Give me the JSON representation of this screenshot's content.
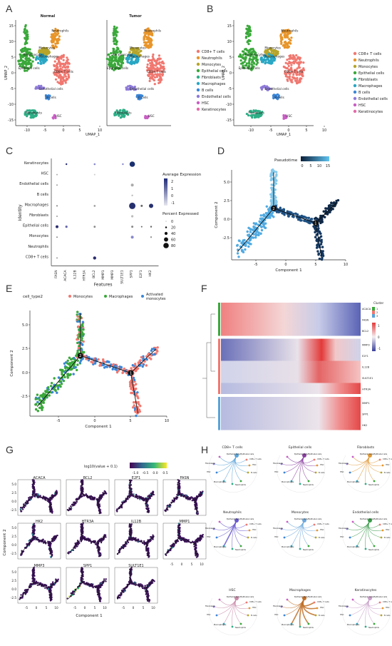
{
  "panels": {
    "A": "A",
    "B": "B",
    "C": "C",
    "D": "D",
    "E": "E",
    "F": "F",
    "G": "G",
    "H": "H"
  },
  "panelA": {
    "title_left": "Normal",
    "title_right": "Tumor",
    "xlabel": "UMAP_1",
    "ylabel": "UMAP_2",
    "yticks": [
      "15",
      "10",
      "5",
      "0",
      "-5",
      "-10",
      "-15"
    ],
    "xticks_left": [
      "-10",
      "-5",
      "0",
      "5",
      "10"
    ],
    "xticks_right": [
      "-5",
      "0",
      "5",
      "10"
    ],
    "cluster_labels": [
      "Neutrophils",
      "Monocytes",
      "Macrophages",
      "Keratinocytes",
      "Epithelial cells",
      "CD8+ T cells",
      "Endothelial cells",
      "B cells",
      "Fibroblasts",
      "HSC"
    ]
  },
  "legend_types": [
    "CD8+ T cells",
    "Neutrophils",
    "Monocytes",
    "Epithelial cells",
    "Fibroblasts",
    "Macrophages",
    "B cells",
    "Endothelial cells",
    "HSC",
    "Keratinocytes"
  ],
  "legend_colors": [
    "#f07870",
    "#e8952a",
    "#b6a52a",
    "#3aa83a",
    "#2eae86",
    "#29a7c4",
    "#3a86d8",
    "#8e7ad8",
    "#c85ec4",
    "#e36aa8"
  ],
  "panelB": {
    "xlabel": "UMAP_1",
    "ylabel": "UMAP_2",
    "yticks": [
      "15",
      "10",
      "5",
      "0",
      "-5",
      "-10",
      "-15"
    ],
    "xticks": [
      "-10",
      "-5",
      "0",
      "5",
      "10"
    ],
    "cluster_labels": [
      "Neutrophils",
      "Monocytes",
      "Macrophages",
      "Keratinocytes",
      "Epithelial cells",
      "CD8+ T cells",
      "Endothelial cells",
      "B cells",
      "Fibroblasts",
      "HSC"
    ]
  },
  "panelC": {
    "ylabel": "Identity",
    "xlabel": "Features",
    "rows": [
      "Keratinocytes",
      "HSC",
      "Endothelial cells",
      "B cells",
      "Macrophages",
      "Fibroblasts",
      "Epithelial cells",
      "Monocytes",
      "Neutrophils",
      "CD8+ T cells"
    ],
    "features": [
      "FASN",
      "ACACA",
      "IL12B",
      "HTR3A",
      "BCL2",
      "MMP1",
      "MMP3",
      "SULT1E1",
      "SPP1",
      "E2F1",
      "HK2"
    ],
    "legend_expr_title": "Average Expression",
    "expr_ticks": [
      "2",
      "1",
      "0",
      "-1"
    ],
    "legend_pct_title": "Percent Expressed",
    "pct_ticks": [
      "0",
      "20",
      "40",
      "60",
      "80"
    ]
  },
  "panelD": {
    "legend_title": "Pseudotime",
    "legend_ticks": [
      "0",
      "5",
      "10",
      "15"
    ],
    "xlabel": "Component 1",
    "ylabel": "Component 2",
    "xticks": [
      "-5",
      "0",
      "5",
      "10"
    ],
    "yticks": [
      "5.0",
      "2.5",
      "0.0",
      "-2.5"
    ],
    "nodes": [
      "1",
      "2"
    ]
  },
  "panelE": {
    "legend_title": "cell_type2",
    "legend_items": [
      "Monocytes",
      "Macrophages",
      "Activated monocytes"
    ],
    "legend_colors": [
      "#f07870",
      "#3aa83a",
      "#3a86d8"
    ],
    "xlabel": "Component 1",
    "ylabel": "Component 2",
    "xticks": [
      "-5",
      "0",
      "5",
      "10"
    ],
    "yticks": [
      "5.0",
      "2.5",
      "0.0",
      "-2.5"
    ],
    "nodes": [
      "1",
      "2"
    ]
  },
  "panelF": {
    "genes": [
      "ACACA",
      "FASN",
      "BCL2",
      "MMP3",
      "E2F1",
      "IL12B",
      "SULT1E1",
      "HTR3A",
      "MMP1",
      "SPP1",
      "HK2"
    ],
    "legend_title": "Cluster",
    "legend_ticks": [
      "1",
      "0",
      "-1"
    ],
    "cluster_ids": [
      "1",
      "2",
      "3"
    ]
  },
  "panelG": {
    "legend_title": "log10(value + 0.1)",
    "legend_ticks": [
      "-1.0",
      "-0.5",
      "0.0",
      "0.5"
    ],
    "genes": [
      "ACACA",
      "BCL2",
      "E2F1",
      "FASN",
      "HK2",
      "HTR3A",
      "IL12B",
      "MMP1",
      "MMP3",
      "SPP1",
      "SULT1E1"
    ],
    "xlabel": "Component 1",
    "ylabel": "Component 2",
    "xticks": [
      "-5",
      "0",
      "5",
      "10"
    ],
    "yticks": [
      "5.0",
      "2.5",
      "0.0",
      "-2.5"
    ]
  },
  "panelH": {
    "titles": [
      "CD8+ T cells",
      "Epithelial cells",
      "Fibroblasts",
      "Neutrophils",
      "Monocytes",
      "Endothelial cells",
      "HSC",
      "Macrophages",
      "Keratinocytes"
    ],
    "colors": [
      "#5aa3d8",
      "#8a3fa0",
      "#e09a3a",
      "#6a5acd",
      "#6fa8dc",
      "#3a9a4a",
      "#c98aa8",
      "#c07028",
      "#c8a0c8"
    ],
    "nodes": [
      "Epithelial cells/Epithelial cells",
      "CD8+ T cells",
      "HSC",
      "Fibroblasts",
      "B cells",
      "Macrophages",
      "Monocytes",
      "Neutrophils",
      "Endothelial cells",
      "Keratinocytes"
    ]
  }
}
